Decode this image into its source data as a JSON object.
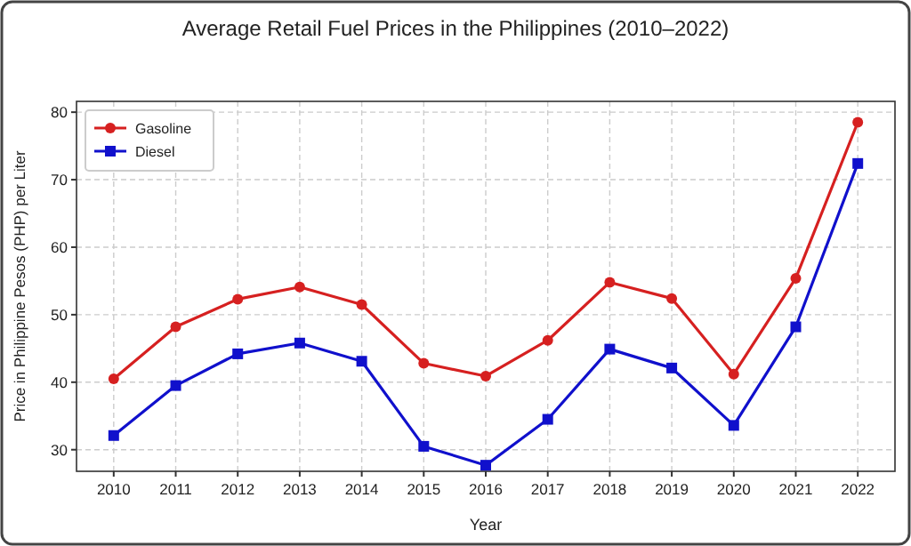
{
  "chart_data": {
    "type": "line",
    "title": "Average Retail Fuel Prices in the Philippines (2010–2022)",
    "xlabel": "Year",
    "ylabel": "Price in Philippine Pesos (PHP) per Liter",
    "x": [
      2010,
      2011,
      2012,
      2013,
      2014,
      2015,
      2016,
      2017,
      2018,
      2019,
      2020,
      2021,
      2022
    ],
    "series": [
      {
        "name": "Gasoline",
        "color": "#d62020",
        "marker": "circle",
        "values": [
          40.5,
          48.2,
          52.3,
          54.1,
          51.5,
          42.8,
          40.9,
          46.2,
          54.8,
          52.4,
          41.2,
          55.4,
          78.5
        ]
      },
      {
        "name": "Diesel",
        "color": "#1010cc",
        "marker": "square",
        "values": [
          32.1,
          39.5,
          44.2,
          45.8,
          43.1,
          30.5,
          27.7,
          34.5,
          44.9,
          42.1,
          33.6,
          48.2,
          72.4
        ]
      }
    ],
    "xlim": [
      2009.4,
      2022.6
    ],
    "xticks": [
      2010,
      2011,
      2012,
      2013,
      2014,
      2015,
      2016,
      2017,
      2018,
      2019,
      2020,
      2021,
      2022
    ],
    "ylim": [
      26.8,
      81.6
    ],
    "yticks": [
      30,
      40,
      50,
      60,
      70,
      80
    ],
    "grid": true,
    "legend": "top left",
    "line_style": "solid"
  }
}
